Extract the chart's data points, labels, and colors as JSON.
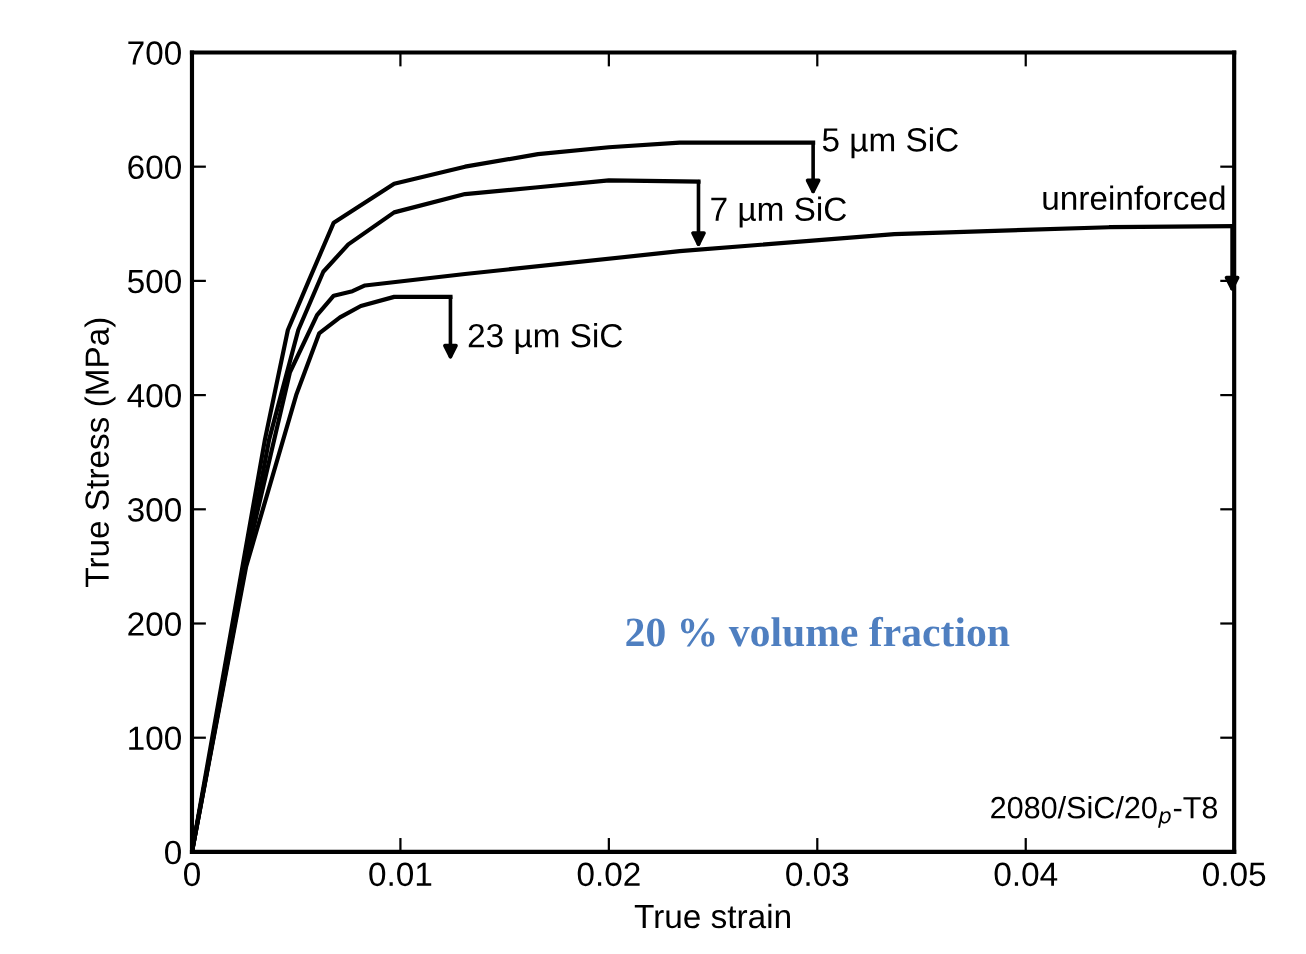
{
  "chart_data": {
    "type": "line",
    "xlabel": "True strain",
    "ylabel": "True Stress (MPa)",
    "xlim": [
      0,
      0.05
    ],
    "ylim": [
      0,
      700
    ],
    "xticks": [
      0,
      0.01,
      0.02,
      0.03,
      0.04,
      0.05
    ],
    "yticks": [
      0,
      100,
      200,
      300,
      400,
      500,
      600,
      700
    ],
    "grid": false,
    "legend": false,
    "marker": "none",
    "line_style": "solid",
    "series": [
      {
        "color": "#000000",
        "x": [
          0,
          0.0035,
          0.0046,
          0.0056,
          0.0068,
          0.0097,
          0.0131,
          0.0166,
          0.02,
          0.0234,
          0.0298
        ],
        "values": [
          0,
          361,
          457,
          500,
          551,
          585,
          600,
          611,
          617,
          621,
          621
        ]
      },
      {
        "color": "#000000",
        "x": [
          0,
          0.0037,
          0.0051,
          0.0063,
          0.0075,
          0.0097,
          0.0131,
          0.0166,
          0.02,
          0.0243
        ],
        "values": [
          0,
          361,
          457,
          508,
          532,
          560,
          576,
          582,
          588,
          587
        ]
      },
      {
        "color": "#000000",
        "x": [
          0,
          0.0026,
          0.0047,
          0.006,
          0.0068,
          0.0077,
          0.0083,
          0.0131,
          0.0234,
          0.0337,
          0.044,
          0.0499
        ],
        "values": [
          0,
          256,
          420,
          470,
          487,
          491,
          496,
          506,
          526,
          541,
          547,
          548
        ]
      },
      {
        "color": "#000000",
        "x": [
          0,
          0.0026,
          0.005,
          0.0061,
          0.0071,
          0.0081,
          0.0097,
          0.0124
        ],
        "values": [
          0,
          250,
          400,
          454,
          468,
          478,
          486,
          486
        ]
      }
    ],
    "annotations": [
      {
        "text": "5 µm SiC",
        "x": 0.0298,
        "y": 621
      },
      {
        "text": "7 µm SiC",
        "x": 0.0243,
        "y": 587
      },
      {
        "text": "unreinforced",
        "x": 0.0499,
        "y": 548
      },
      {
        "text": "23 µm SiC",
        "x": 0.0124,
        "y": 486
      },
      "20 % volume fraction",
      "2080/SiC/20$_{p}$-T8"
    ]
  }
}
